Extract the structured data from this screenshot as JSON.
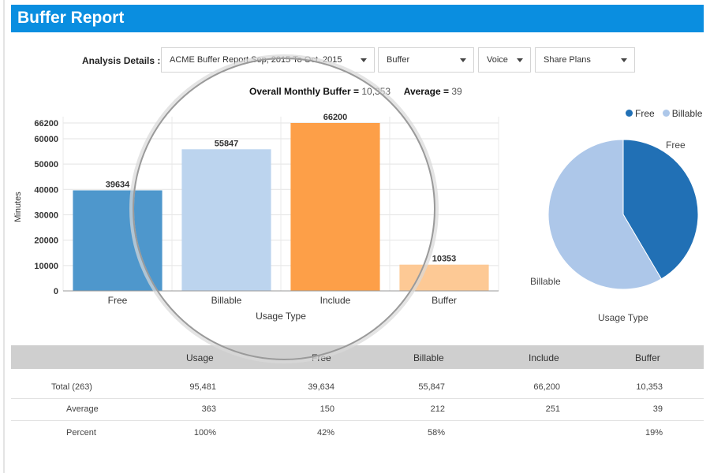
{
  "header": {
    "title": "Buffer Report"
  },
  "filters": {
    "label": "Analysis Details :",
    "report": "ACME Buffer Report Sep, 2015 To Oct, 2015",
    "type": "Buffer",
    "service": "Voice",
    "plan": "Share Plans"
  },
  "summary": {
    "buffer_label": "Overall Monthly Buffer = ",
    "buffer_value": "10,353",
    "avg_label": "Average = ",
    "avg_value": "39"
  },
  "chart_data": [
    {
      "type": "bar",
      "title": "Overall Monthly Buffer = 10,353 Average = 39",
      "xlabel": "Usage Type",
      "ylabel": "Minutes",
      "categories": [
        "Free",
        "Billable",
        "Include",
        "Buffer"
      ],
      "values": [
        39634,
        55847,
        66200,
        10353
      ],
      "colors": [
        "#4e97cc",
        "#bcd4ee",
        "#fd9f48",
        "#fdc995"
      ],
      "ylim": [
        0,
        66200
      ],
      "yticks": [
        0,
        10000,
        20000,
        30000,
        40000,
        50000,
        60000,
        66200
      ],
      "grid": true
    },
    {
      "type": "pie",
      "xlabel": "Usage Type",
      "labels": [
        "Free",
        "Billable"
      ],
      "values": [
        39634,
        55847
      ],
      "colors": [
        "#2170b5",
        "#adc7e9"
      ],
      "legend": "top-right"
    }
  ],
  "table": {
    "headers": [
      "Usage",
      "Free",
      "Billable",
      "Include",
      "Buffer"
    ],
    "rows": [
      {
        "label": "Total (263)",
        "cells": [
          "95,481",
          "39,634",
          "55,847",
          "66,200",
          "10,353"
        ]
      },
      {
        "label": "Average",
        "cells": [
          "363",
          "150",
          "212",
          "251",
          "39"
        ]
      },
      {
        "label": "Percent",
        "cells": [
          "100%",
          "42%",
          "58%",
          "",
          "19%"
        ]
      }
    ]
  }
}
